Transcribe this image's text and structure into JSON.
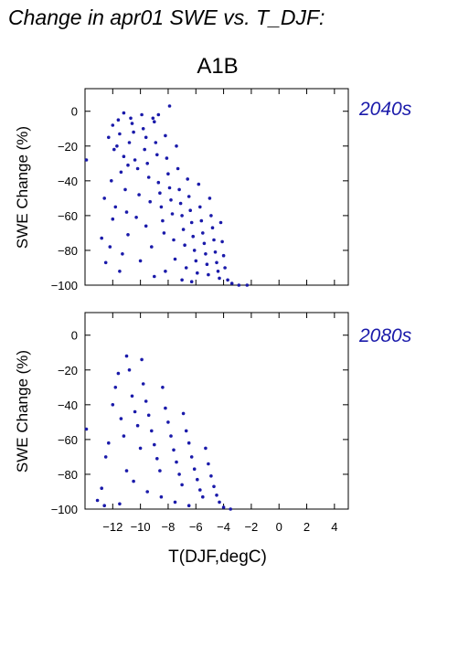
{
  "figure": {
    "title": "Change in apr01 SWE vs. T_DJF:",
    "scenario": "A1B",
    "point_color": "#1a1aaa",
    "label_color": "#1a1aaa"
  },
  "chart_data": [
    {
      "type": "scatter",
      "period": "2040s",
      "ylabel": "SWE Change (%)",
      "xlabel": "",
      "xlim": [
        -14,
        5
      ],
      "ylim": [
        -100,
        13
      ],
      "xticks": [
        -12,
        -10,
        -8,
        -6,
        -4,
        -2,
        0,
        2,
        4
      ],
      "xtick_labels": [],
      "yticks": [
        0,
        -20,
        -40,
        -60,
        -80,
        -100
      ],
      "ytick_labels": [
        "0",
        "−20",
        "−40",
        "−60",
        "−80",
        "−100"
      ],
      "series": [
        {
          "values": [
            [
              -13.9,
              -28
            ],
            [
              -12.8,
              -73
            ],
            [
              -12.5,
              -87
            ],
            [
              -12.3,
              -15
            ],
            [
              -12.0,
              -8
            ],
            [
              -11.9,
              -22
            ],
            [
              -12.6,
              -50
            ],
            [
              -12.0,
              -62
            ],
            [
              -11.6,
              -5
            ],
            [
              -11.5,
              -13
            ],
            [
              -11.7,
              -20
            ],
            [
              -11.4,
              -35
            ],
            [
              -11.2,
              -26
            ],
            [
              -11.1,
              -45
            ],
            [
              -11.0,
              -58
            ],
            [
              -10.9,
              -71
            ],
            [
              -11.3,
              -82
            ],
            [
              -10.8,
              -18
            ],
            [
              -10.7,
              -4
            ],
            [
              -10.5,
              -12
            ],
            [
              -10.4,
              -28
            ],
            [
              -10.2,
              -33
            ],
            [
              -10.1,
              -48
            ],
            [
              -10.3,
              -61
            ],
            [
              -9.9,
              -2
            ],
            [
              -9.8,
              -10
            ],
            [
              -9.7,
              -22
            ],
            [
              -9.5,
              -30
            ],
            [
              -9.4,
              -38
            ],
            [
              -9.3,
              -52
            ],
            [
              -9.6,
              -66
            ],
            [
              -9.2,
              -78
            ],
            [
              -9.0,
              -6
            ],
            [
              -8.9,
              -18
            ],
            [
              -8.8,
              -25
            ],
            [
              -8.7,
              -41
            ],
            [
              -8.6,
              -47
            ],
            [
              -8.5,
              -55
            ],
            [
              -8.4,
              -63
            ],
            [
              -8.3,
              -70
            ],
            [
              -8.2,
              -14
            ],
            [
              -8.1,
              -27
            ],
            [
              -8.0,
              -36
            ],
            [
              -7.9,
              -44
            ],
            [
              -7.8,
              -51
            ],
            [
              -7.7,
              -59
            ],
            [
              -7.6,
              -74
            ],
            [
              -7.5,
              -85
            ],
            [
              -7.4,
              -20
            ],
            [
              -7.3,
              -33
            ],
            [
              -7.2,
              -45
            ],
            [
              -7.1,
              -53
            ],
            [
              -7.0,
              -60
            ],
            [
              -6.9,
              -68
            ],
            [
              -6.8,
              -77
            ],
            [
              -6.7,
              -90
            ],
            [
              -6.6,
              -39
            ],
            [
              -6.5,
              -49
            ],
            [
              -6.4,
              -57
            ],
            [
              -6.3,
              -64
            ],
            [
              -6.2,
              -72
            ],
            [
              -6.1,
              -80
            ],
            [
              -6.0,
              -86
            ],
            [
              -5.9,
              -93
            ],
            [
              -5.8,
              -42
            ],
            [
              -5.7,
              -55
            ],
            [
              -5.6,
              -63
            ],
            [
              -5.5,
              -70
            ],
            [
              -5.4,
              -76
            ],
            [
              -5.3,
              -82
            ],
            [
              -5.2,
              -88
            ],
            [
              -5.1,
              -94
            ],
            [
              -5.0,
              -50
            ],
            [
              -4.9,
              -60
            ],
            [
              -4.8,
              -67
            ],
            [
              -4.7,
              -74
            ],
            [
              -4.6,
              -81
            ],
            [
              -4.5,
              -87
            ],
            [
              -4.4,
              -92
            ],
            [
              -4.3,
              -96
            ],
            [
              -4.2,
              -64
            ],
            [
              -4.1,
              -75
            ],
            [
              -4.0,
              -83
            ],
            [
              -3.9,
              -90
            ],
            [
              -3.7,
              -97
            ],
            [
              -3.4,
              -99
            ],
            [
              -2.9,
              -100
            ],
            [
              -2.3,
              -100
            ],
            [
              -7.9,
              3
            ],
            [
              -11.2,
              -1
            ],
            [
              -10.6,
              -7
            ],
            [
              -9.1,
              -4
            ],
            [
              -8.7,
              -2
            ],
            [
              -9.6,
              -15
            ],
            [
              -10.9,
              -31
            ],
            [
              -12.1,
              -40
            ],
            [
              -11.8,
              -55
            ],
            [
              -12.2,
              -78
            ],
            [
              -11.5,
              -92
            ],
            [
              -10.0,
              -86
            ],
            [
              -9.0,
              -95
            ],
            [
              -8.2,
              -92
            ],
            [
              -7.0,
              -97
            ],
            [
              -6.3,
              -98
            ]
          ]
        }
      ]
    },
    {
      "type": "scatter",
      "period": "2080s",
      "ylabel": "SWE Change (%)",
      "xlabel": "T(DJF,degC)",
      "xlim": [
        -14,
        5
      ],
      "ylim": [
        -100,
        13
      ],
      "xticks": [
        -12,
        -10,
        -8,
        -6,
        -4,
        -2,
        0,
        2,
        4
      ],
      "xtick_labels": [
        "−12",
        "−10",
        "−8",
        "−6",
        "−4",
        "−2",
        "0",
        "2",
        "4"
      ],
      "yticks": [
        0,
        -20,
        -40,
        -60,
        -80,
        -100
      ],
      "ytick_labels": [
        "0",
        "−20",
        "−40",
        "−60",
        "−80",
        "−100"
      ],
      "series": [
        {
          "values": [
            [
              -13.9,
              -54
            ],
            [
              -13.1,
              -95
            ],
            [
              -12.8,
              -88
            ],
            [
              -12.5,
              -70
            ],
            [
              -12.3,
              -62
            ],
            [
              -12.0,
              -40
            ],
            [
              -11.8,
              -30
            ],
            [
              -11.6,
              -22
            ],
            [
              -11.4,
              -48
            ],
            [
              -11.2,
              -58
            ],
            [
              -11.0,
              -12
            ],
            [
              -10.8,
              -20
            ],
            [
              -10.6,
              -35
            ],
            [
              -10.4,
              -44
            ],
            [
              -10.2,
              -52
            ],
            [
              -10.0,
              -65
            ],
            [
              -9.9,
              -14
            ],
            [
              -9.8,
              -28
            ],
            [
              -9.6,
              -38
            ],
            [
              -9.4,
              -46
            ],
            [
              -9.2,
              -55
            ],
            [
              -9.0,
              -63
            ],
            [
              -8.8,
              -71
            ],
            [
              -8.6,
              -78
            ],
            [
              -8.4,
              -30
            ],
            [
              -8.2,
              -42
            ],
            [
              -8.0,
              -50
            ],
            [
              -7.8,
              -58
            ],
            [
              -7.6,
              -66
            ],
            [
              -7.4,
              -73
            ],
            [
              -7.2,
              -80
            ],
            [
              -7.0,
              -86
            ],
            [
              -6.9,
              -45
            ],
            [
              -6.7,
              -55
            ],
            [
              -6.5,
              -62
            ],
            [
              -6.3,
              -70
            ],
            [
              -6.1,
              -77
            ],
            [
              -5.9,
              -83
            ],
            [
              -5.7,
              -89
            ],
            [
              -5.5,
              -93
            ],
            [
              -5.3,
              -65
            ],
            [
              -5.1,
              -74
            ],
            [
              -4.9,
              -81
            ],
            [
              -4.7,
              -87
            ],
            [
              -4.5,
              -92
            ],
            [
              -4.3,
              -96
            ],
            [
              -4.0,
              -99
            ],
            [
              -3.5,
              -100
            ],
            [
              -11.0,
              -78
            ],
            [
              -10.5,
              -84
            ],
            [
              -9.5,
              -90
            ],
            [
              -8.5,
              -93
            ],
            [
              -7.5,
              -96
            ],
            [
              -6.5,
              -98
            ],
            [
              -12.6,
              -98
            ],
            [
              -11.5,
              -97
            ]
          ]
        }
      ]
    }
  ]
}
